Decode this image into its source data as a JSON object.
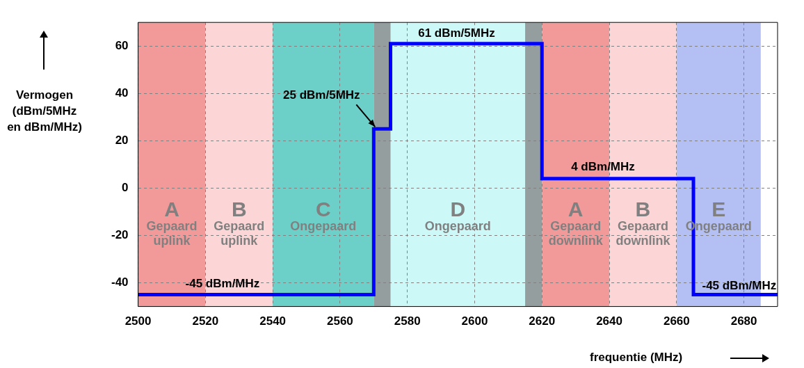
{
  "chart_data": {
    "type": "step",
    "xlabel": "frequentie (MHz)",
    "ylabel": "Vermogen (dBm/5MHz en dBm/MHz)",
    "series": [
      {
        "color": "#0000ff",
        "x": [
          2500,
          2570,
          2575,
          2620,
          2665,
          2690
        ],
        "values": [
          -45,
          25,
          61,
          4,
          -45,
          -45
        ]
      }
    ],
    "xlim": [
      2500,
      2690
    ],
    "xticks": [
      2500,
      2520,
      2540,
      2560,
      2580,
      2600,
      2620,
      2640,
      2660,
      2680
    ],
    "ylim": [
      -50,
      70
    ],
    "yticks": [
      -40,
      -20,
      0,
      20,
      40,
      60
    ],
    "grid": true,
    "bands": [
      {
        "axis": "x",
        "from": 2500,
        "to": 2520,
        "label": "A\nGepaard\nuplink",
        "color": "#f29a9a"
      },
      {
        "axis": "x",
        "from": 2520,
        "to": 2540,
        "label": "B\nGepaard\nuplink",
        "color": "#fcd6d6"
      },
      {
        "axis": "x",
        "from": 2540,
        "to": 2570,
        "label": "C\nOngepaard",
        "color": "#6dd0c8"
      },
      {
        "axis": "x",
        "from": 2570,
        "to": 2620,
        "label": "D\nOngepaard",
        "color": "#cdf8f8"
      },
      {
        "axis": "x",
        "from": 2570,
        "to": 2575,
        "color": "#808080"
      },
      {
        "axis": "x",
        "from": 2615,
        "to": 2620,
        "color": "#808080"
      },
      {
        "axis": "x",
        "from": 2620,
        "to": 2640,
        "label": "A\nGepaard\ndownlink",
        "color": "#f29a9a"
      },
      {
        "axis": "x",
        "from": 2640,
        "to": 2660,
        "label": "B\nGepaard\ndownlink",
        "color": "#fcd6d6"
      },
      {
        "axis": "x",
        "from": 2660,
        "to": 2685,
        "label": "E\nOngepaard",
        "color": "#b4c0f4"
      }
    ],
    "annotations": [
      "61 dBm/5MHz",
      {
        "text": "25 dBm/5MHz",
        "x": 2570,
        "y": 25
      },
      "4 dBm/MHz",
      "-45 dBm/MHz",
      "-45 dBm/MHz"
    ]
  }
}
